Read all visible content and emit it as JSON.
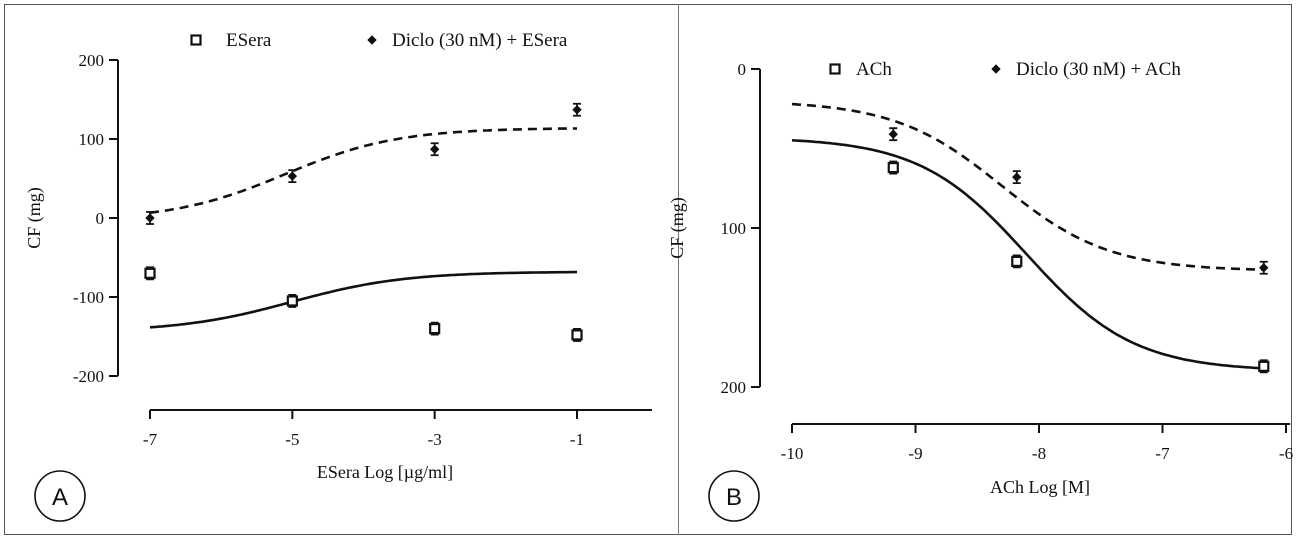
{
  "colors": {
    "ink": "#111111",
    "background": "#ffffff"
  },
  "chart_data": [
    {
      "panel": "A",
      "type": "line",
      "xlabel": "ESera Log [µg/ml]",
      "ylabel": "CF (mg)",
      "xlim": [
        -7,
        -1
      ],
      "ylim": [
        -200,
        200
      ],
      "xticks": [
        -7,
        -5,
        -3,
        -1
      ],
      "yticks": [
        200,
        100,
        0,
        -100,
        -200
      ],
      "tick_labels_x": [
        "-7",
        "-5",
        "-3",
        "-1"
      ],
      "tick_labels_y": [
        "200",
        "100",
        "0",
        "-100",
        "-200"
      ],
      "legend_position": "top",
      "series": [
        {
          "name": "ESera",
          "marker": "open-square",
          "line": "solid",
          "x": [
            -7,
            -5,
            -3,
            -1
          ],
          "y": [
            -70,
            -105,
            -140,
            -148
          ],
          "fit": {
            "bottom": -144,
            "top": -68,
            "logEC50": -5.0,
            "hill": 0.55
          }
        },
        {
          "name": "Diclo (30 nM) + ESera",
          "marker": "diamond",
          "line": "dashed",
          "x": [
            -7,
            -5,
            -3,
            -1
          ],
          "y": [
            0,
            53,
            87,
            137
          ],
          "fit": {
            "bottom": -3,
            "top": 114,
            "logEC50": -5.1,
            "hill": 0.55
          }
        }
      ]
    },
    {
      "panel": "B",
      "type": "line",
      "xlabel": "ACh Log [M]",
      "ylabel": "CF (mg)",
      "xlim": [
        -10,
        -6
      ],
      "ylim": [
        0,
        200
      ],
      "y_inverted": true,
      "xticks": [
        -10,
        -9,
        -8,
        -7,
        -6
      ],
      "yticks": [
        0,
        100,
        200
      ],
      "tick_labels_x": [
        "-10",
        "-9",
        "-8",
        "-7",
        "-6"
      ],
      "tick_labels_y": [
        "0",
        "100",
        "200"
      ],
      "legend_position": "top",
      "series": [
        {
          "name": "ACh",
          "marker": "open-square",
          "line": "solid",
          "x": [
            -9.18,
            -8.18,
            -6.18
          ],
          "y": [
            62,
            121,
            187
          ],
          "fit": {
            "bottom": 43,
            "top": 190,
            "logEC50": -8.1,
            "hill": 1.0
          }
        },
        {
          "name": "Diclo (30 nM) + ACh",
          "marker": "diamond",
          "line": "dashed",
          "x": [
            -9.18,
            -8.18,
            -6.18
          ],
          "y": [
            41,
            68,
            125
          ],
          "fit": {
            "bottom": 20,
            "top": 127,
            "logEC50": -8.3,
            "hill": 1.0
          }
        }
      ]
    }
  ],
  "panels": {
    "a_label": "A",
    "b_label": "B"
  }
}
